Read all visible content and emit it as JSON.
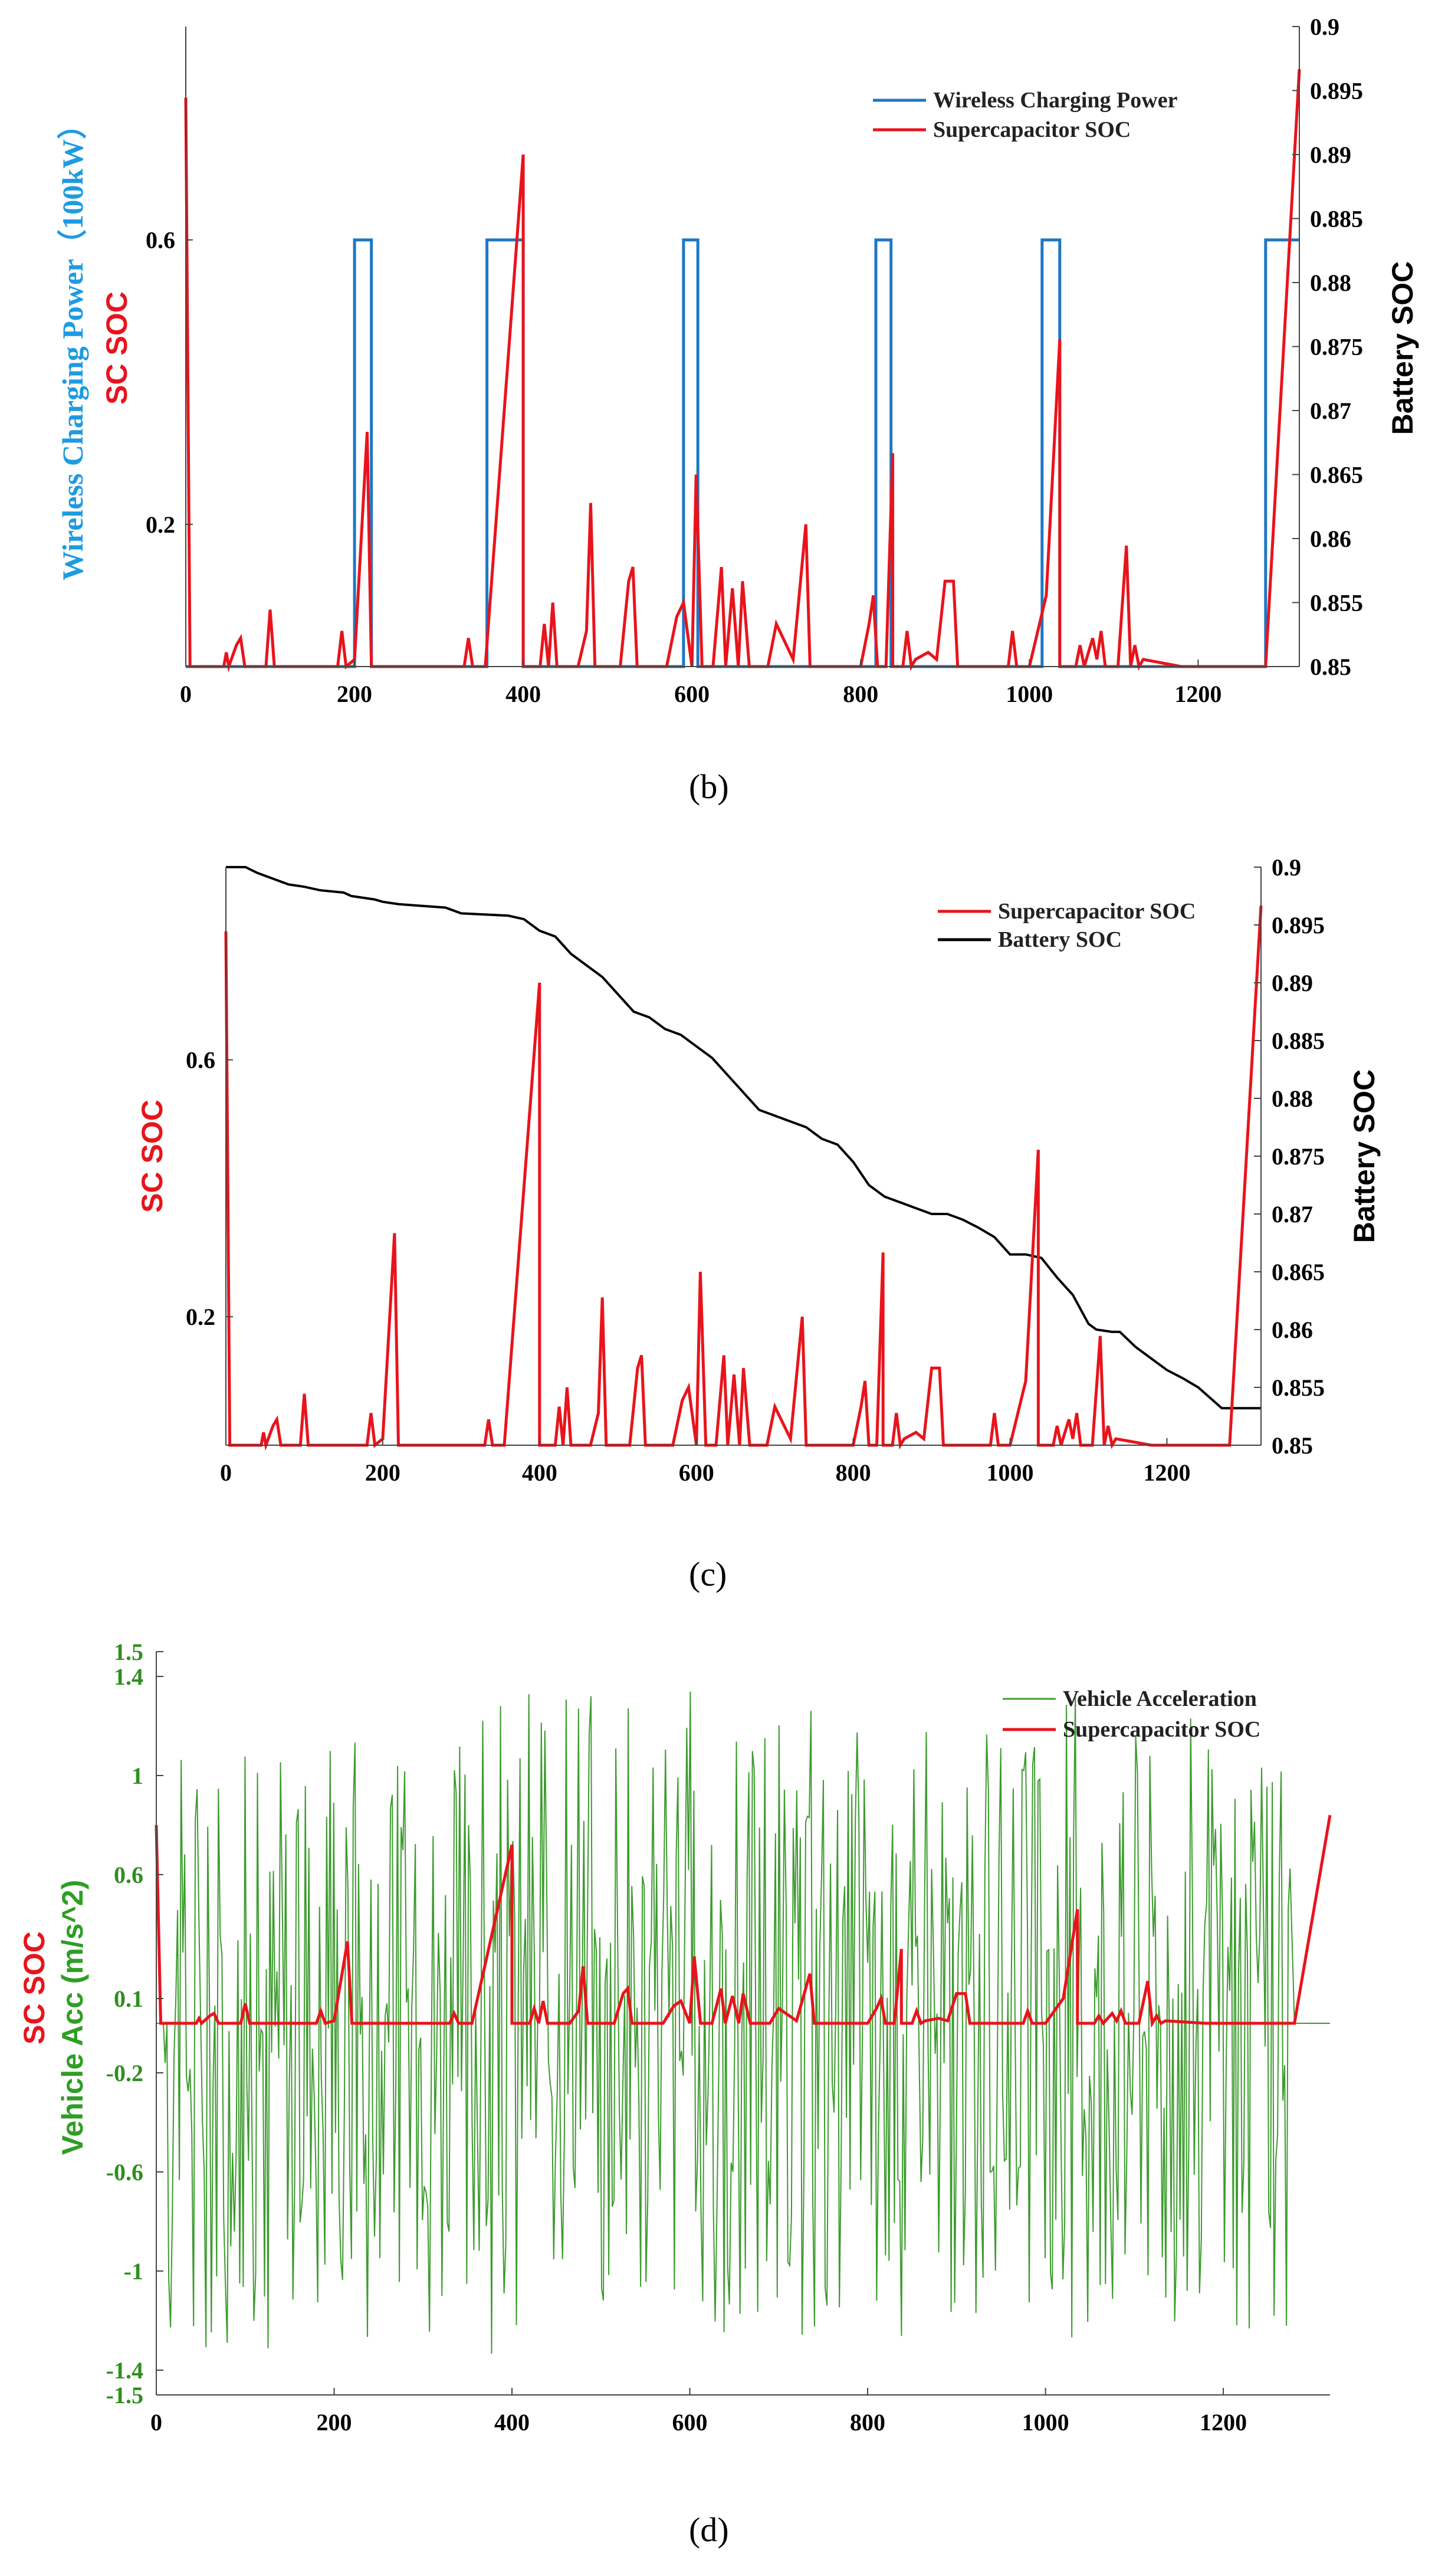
{
  "chart_data": [
    {
      "id": "b",
      "type": "line",
      "caption": "(b)",
      "xlim": [
        0,
        1320
      ],
      "x_ticks": [
        0,
        200,
        400,
        600,
        800,
        1000,
        1200
      ],
      "left_axis": {
        "label_power": "Wireless Charging Power（100kW）",
        "label_sc": "SC SOC",
        "ylim": [
          0,
          0.9
        ],
        "ticks": [
          0.2,
          0.6
        ]
      },
      "right_axis": {
        "label": "Battery SOC",
        "ylim": [
          0.85,
          0.9
        ],
        "ticks": [
          0.85,
          0.855,
          0.86,
          0.865,
          0.87,
          0.875,
          0.88,
          0.885,
          0.89,
          0.895,
          0.9
        ]
      },
      "legend": [
        "Wireless Charging Power",
        "Supercapacitor SOC"
      ],
      "series": [
        {
          "name": "Wireless Charging Power",
          "color": "#1f77c4",
          "x": [
            0,
            200,
            200,
            220,
            220,
            357,
            357,
            400,
            400,
            590,
            590,
            607,
            607,
            818,
            818,
            836,
            836,
            1015,
            1015,
            1036,
            1036,
            1280,
            1280,
            1320
          ],
          "y": [
            0,
            0,
            0.6,
            0.6,
            0,
            0,
            0.6,
            0.6,
            0,
            0,
            0.6,
            0.6,
            0,
            0,
            0.6,
            0.6,
            0,
            0,
            0.6,
            0.6,
            0,
            0,
            0.6,
            0.6
          ]
        },
        {
          "name": "Supercapacitor SOC",
          "color": "#e8141c",
          "x": [
            0,
            0,
            5,
            45,
            48,
            51,
            60,
            65,
            70,
            75,
            95,
            100,
            105,
            180,
            185,
            190,
            200,
            215,
            220,
            240,
            330,
            335,
            340,
            355,
            400,
            400,
            420,
            425,
            430,
            435,
            440,
            465,
            475,
            480,
            485,
            515,
            525,
            530,
            535,
            570,
            582,
            590,
            600,
            605,
            612,
            625,
            635,
            640,
            648,
            655,
            660,
            668,
            690,
            700,
            720,
            735,
            740,
            748,
            800,
            810,
            815,
            820,
            830,
            838,
            838,
            850,
            855,
            860,
            865,
            880,
            890,
            900,
            910,
            915,
            975,
            980,
            985,
            1000,
            1020,
            1036,
            1036,
            1055,
            1060,
            1065,
            1075,
            1080,
            1085,
            1090,
            1105,
            1115,
            1120,
            1125,
            1130,
            1135,
            1180,
            1280,
            1320
          ],
          "y": [
            0.8,
            0.8,
            0,
            0,
            0.02,
            0,
            0.03,
            0.04,
            0,
            0,
            0,
            0.08,
            0,
            0,
            0.05,
            0,
            0.01,
            0.33,
            0,
            0,
            0,
            0.04,
            0,
            0,
            0.72,
            0,
            0,
            0.06,
            0,
            0.09,
            0,
            0,
            0.05,
            0.23,
            0,
            0,
            0.12,
            0.14,
            0,
            0,
            0.07,
            0.09,
            0,
            0.27,
            0,
            0,
            0.14,
            0,
            0.11,
            0,
            0.12,
            0,
            0,
            0.06,
            0.01,
            0.2,
            0,
            0,
            0,
            0.06,
            0.1,
            0,
            0,
            0.3,
            0,
            0,
            0.05,
            0,
            0.01,
            0.02,
            0.01,
            0.12,
            0.12,
            0,
            0,
            0.05,
            0,
            0,
            0.1,
            0.46,
            0,
            0,
            0.03,
            0,
            0.04,
            0.01,
            0.05,
            0,
            0,
            0.17,
            0,
            0.03,
            0,
            0.01,
            0,
            0,
            0.84
          ]
        }
      ]
    },
    {
      "id": "c",
      "type": "line",
      "caption": "(c)",
      "xlim": [
        0,
        1320
      ],
      "x_ticks": [
        0,
        200,
        400,
        600,
        800,
        1000,
        1200
      ],
      "left_axis": {
        "label": "SC SOC",
        "ylim": [
          0,
          0.9
        ],
        "ticks": [
          0.2,
          0.6
        ]
      },
      "right_axis": {
        "label": "Battery SOC",
        "ylim": [
          0.85,
          0.9
        ],
        "ticks": [
          0.85,
          0.855,
          0.86,
          0.865,
          0.87,
          0.875,
          0.88,
          0.885,
          0.89,
          0.895,
          0.9
        ]
      },
      "legend": [
        "Supercapacitor SOC",
        "Battery SOC"
      ],
      "series": [
        {
          "name": "Supercapacitor SOC",
          "color": "#e8141c",
          "x": [
            0,
            0,
            5,
            45,
            48,
            51,
            60,
            65,
            70,
            75,
            95,
            100,
            105,
            180,
            185,
            190,
            200,
            215,
            220,
            240,
            330,
            335,
            340,
            355,
            400,
            400,
            420,
            425,
            430,
            435,
            440,
            465,
            475,
            480,
            485,
            515,
            525,
            530,
            535,
            570,
            582,
            590,
            600,
            605,
            612,
            625,
            635,
            640,
            648,
            655,
            660,
            668,
            690,
            700,
            720,
            735,
            740,
            748,
            800,
            810,
            815,
            820,
            830,
            838,
            838,
            850,
            855,
            860,
            865,
            880,
            890,
            900,
            910,
            915,
            975,
            980,
            985,
            1000,
            1020,
            1036,
            1036,
            1055,
            1060,
            1065,
            1075,
            1080,
            1085,
            1090,
            1105,
            1115,
            1120,
            1125,
            1130,
            1135,
            1180,
            1280,
            1320
          ],
          "y": [
            0.8,
            0.8,
            0,
            0,
            0.02,
            0,
            0.03,
            0.04,
            0,
            0,
            0,
            0.08,
            0,
            0,
            0.05,
            0,
            0.01,
            0.33,
            0,
            0,
            0,
            0.04,
            0,
            0,
            0.72,
            0,
            0,
            0.06,
            0,
            0.09,
            0,
            0,
            0.05,
            0.23,
            0,
            0,
            0.12,
            0.14,
            0,
            0,
            0.07,
            0.09,
            0,
            0.27,
            0,
            0,
            0.14,
            0,
            0.11,
            0,
            0.12,
            0,
            0,
            0.06,
            0.01,
            0.2,
            0,
            0,
            0,
            0.06,
            0.1,
            0,
            0,
            0.3,
            0,
            0,
            0.05,
            0,
            0.01,
            0.02,
            0.01,
            0.12,
            0.12,
            0,
            0,
            0.05,
            0,
            0,
            0.1,
            0.46,
            0,
            0,
            0.03,
            0,
            0.04,
            0.01,
            0.05,
            0,
            0,
            0.17,
            0,
            0.03,
            0,
            0.01,
            0,
            0,
            0.84
          ]
        },
        {
          "name": "Battery SOC",
          "color": "#000000",
          "x": [
            0,
            25,
            40,
            60,
            80,
            100,
            120,
            150,
            160,
            190,
            200,
            220,
            240,
            280,
            300,
            360,
            380,
            400,
            420,
            440,
            460,
            480,
            500,
            520,
            540,
            560,
            580,
            600,
            620,
            640,
            660,
            680,
            700,
            720,
            740,
            760,
            780,
            800,
            820,
            840,
            860,
            880,
            900,
            920,
            940,
            960,
            980,
            1000,
            1020,
            1040,
            1060,
            1080,
            1100,
            1110,
            1130,
            1140,
            1160,
            1180,
            1200,
            1220,
            1240,
            1260,
            1270,
            1280,
            1320
          ],
          "y": [
            0.9,
            0.9,
            0.8995,
            0.899,
            0.8985,
            0.8983,
            0.898,
            0.8978,
            0.8975,
            0.8972,
            0.897,
            0.8968,
            0.8967,
            0.8965,
            0.896,
            0.8958,
            0.8955,
            0.8945,
            0.894,
            0.8925,
            0.8915,
            0.8905,
            0.889,
            0.8875,
            0.887,
            0.886,
            0.8855,
            0.8845,
            0.8835,
            0.882,
            0.8805,
            0.879,
            0.8785,
            0.878,
            0.8775,
            0.8765,
            0.876,
            0.8745,
            0.8725,
            0.8715,
            0.871,
            0.8705,
            0.87,
            0.87,
            0.8695,
            0.8688,
            0.868,
            0.8665,
            0.8665,
            0.8662,
            0.8645,
            0.863,
            0.8605,
            0.86,
            0.8598,
            0.8598,
            0.8585,
            0.8575,
            0.8565,
            0.8558,
            0.855,
            0.8538,
            0.8532,
            0.8532,
            0.8532
          ]
        }
      ]
    },
    {
      "id": "d",
      "type": "line",
      "caption": "(d)",
      "xlim": [
        0,
        1320
      ],
      "x_ticks": [
        0,
        200,
        400,
        600,
        800,
        1000,
        1200
      ],
      "left_axis": {
        "label_acc": "Vehicle Acc (m/s^2)",
        "label_sc": "SC SOC",
        "ylim": [
          -1.5,
          1.5
        ],
        "ticks": [
          -1.5,
          -1.4,
          -1,
          -0.6,
          -0.2,
          0.1,
          0.6,
          1,
          1.4,
          1.5
        ]
      },
      "legend": [
        "Vehicle Acceleration",
        "Supercapacitor SOC"
      ],
      "series": [
        {
          "name": "Vehicle Acceleration",
          "color": "#3d9b2f",
          "generated_seed": 17,
          "points": 640,
          "amplitude": 1.4
        },
        {
          "name": "Supercapacitor SOC",
          "color": "#e8141c",
          "x": [
            0,
            0,
            5,
            45,
            48,
            51,
            60,
            65,
            70,
            75,
            95,
            100,
            105,
            180,
            185,
            190,
            200,
            215,
            220,
            240,
            330,
            335,
            340,
            355,
            400,
            400,
            420,
            425,
            430,
            435,
            440,
            465,
            475,
            480,
            485,
            515,
            525,
            530,
            535,
            570,
            582,
            590,
            600,
            605,
            612,
            625,
            635,
            640,
            648,
            655,
            660,
            668,
            690,
            700,
            720,
            735,
            740,
            748,
            800,
            810,
            815,
            820,
            830,
            838,
            838,
            850,
            855,
            860,
            865,
            880,
            890,
            900,
            910,
            915,
            975,
            980,
            985,
            1000,
            1020,
            1036,
            1036,
            1055,
            1060,
            1065,
            1075,
            1080,
            1085,
            1090,
            1105,
            1115,
            1120,
            1125,
            1130,
            1135,
            1180,
            1280,
            1320
          ],
          "y": [
            0.8,
            0.8,
            0,
            0,
            0.02,
            0,
            0.03,
            0.04,
            0,
            0,
            0,
            0.08,
            0,
            0,
            0.05,
            0,
            0.01,
            0.33,
            0,
            0,
            0,
            0.04,
            0,
            0,
            0.72,
            0,
            0,
            0.06,
            0,
            0.09,
            0,
            0,
            0.05,
            0.23,
            0,
            0,
            0.12,
            0.14,
            0,
            0,
            0.07,
            0.09,
            0,
            0.27,
            0,
            0,
            0.14,
            0,
            0.11,
            0,
            0.12,
            0,
            0,
            0.06,
            0.01,
            0.2,
            0,
            0,
            0,
            0.06,
            0.1,
            0,
            0,
            0.3,
            0,
            0,
            0.05,
            0,
            0.01,
            0.02,
            0.01,
            0.12,
            0.12,
            0,
            0,
            0.05,
            0,
            0,
            0.1,
            0.46,
            0,
            0,
            0.03,
            0,
            0.04,
            0.01,
            0.05,
            0,
            0,
            0.17,
            0,
            0.03,
            0,
            0.01,
            0,
            0,
            0.84
          ]
        }
      ]
    }
  ]
}
